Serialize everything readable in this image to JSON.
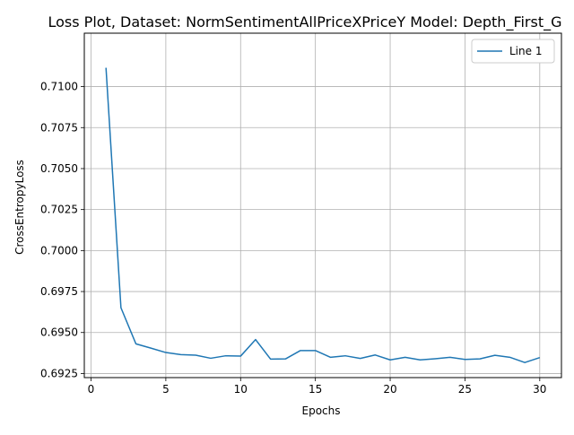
{
  "chart_data": {
    "type": "line",
    "title": "Loss Plot, Dataset: NormSentimentAllPriceXPriceY Model: Depth_First_G",
    "xlabel": "Epochs",
    "ylabel": "CrossEntropyLoss",
    "xlim": [
      -0.45,
      31.45
    ],
    "ylim": [
      0.69225,
      0.71326
    ],
    "xticks": [
      0,
      5,
      10,
      15,
      20,
      25,
      30
    ],
    "xtick_labels": [
      "0",
      "5",
      "10",
      "15",
      "20",
      "25",
      "30"
    ],
    "yticks": [
      0.6925,
      0.695,
      0.6975,
      0.7,
      0.7025,
      0.705,
      0.7075,
      0.71
    ],
    "ytick_labels": [
      "0.6925",
      "0.6950",
      "0.6975",
      "0.7000",
      "0.7025",
      "0.7050",
      "0.7075",
      "0.7100"
    ],
    "grid": true,
    "legend_position": "top-right",
    "series": [
      {
        "name": "Line 1",
        "color": "#1f77b4",
        "x": [
          1,
          2,
          3,
          4,
          5,
          6,
          7,
          8,
          9,
          10,
          11,
          12,
          13,
          14,
          15,
          16,
          17,
          18,
          19,
          20,
          21,
          22,
          23,
          24,
          25,
          26,
          27,
          28,
          29,
          30
        ],
        "y": [
          0.71115,
          0.69651,
          0.69431,
          0.69405,
          0.69378,
          0.69365,
          0.69362,
          0.69343,
          0.69358,
          0.69356,
          0.69457,
          0.69338,
          0.69339,
          0.6939,
          0.6939,
          0.69349,
          0.69358,
          0.69342,
          0.69363,
          0.69333,
          0.69349,
          0.69333,
          0.6934,
          0.69349,
          0.69336,
          0.69339,
          0.69361,
          0.69349,
          0.69317,
          0.69347
        ]
      }
    ]
  }
}
